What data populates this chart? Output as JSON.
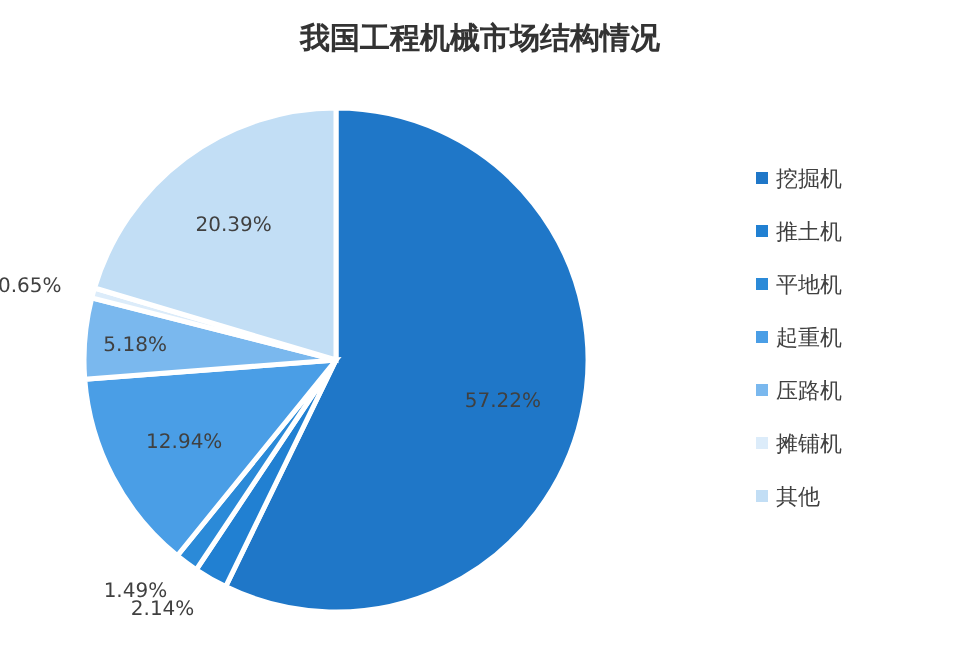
{
  "chart_data": {
    "type": "pie",
    "title": "我国工程机械市场结构情况",
    "categories": [
      "挖掘机",
      "推土机",
      "平地机",
      "起重机",
      "压路机",
      "摊铺机",
      "其他"
    ],
    "values": [
      57.22,
      2.14,
      1.49,
      12.94,
      5.18,
      0.65,
      20.39
    ],
    "value_labels": [
      "57.22%",
      "2.14%",
      "1.49%",
      "12.94%",
      "5.18%",
      "0.65%",
      "20.39%"
    ],
    "colors": [
      "#1f77c8",
      "#2180d2",
      "#2b8ad8",
      "#4a9ee6",
      "#7ab8ee",
      "#dcecfa",
      "#c2def5"
    ],
    "legend": "right"
  }
}
